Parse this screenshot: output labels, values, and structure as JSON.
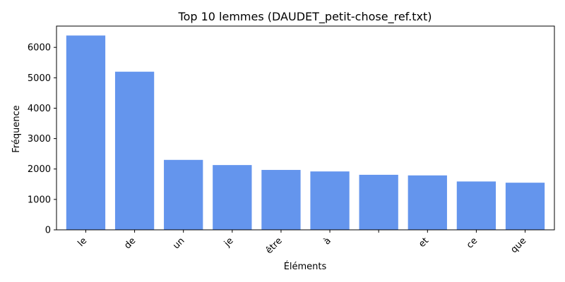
{
  "chart_data": {
    "type": "bar",
    "title": "Top 10 lemmes (DAUDET_petit-chose_ref.txt)",
    "xlabel": "Éléments",
    "ylabel": "Fréquence",
    "categories": [
      "le",
      "de",
      "un",
      "je",
      "être",
      "à",
      "",
      "et",
      "ce",
      "que"
    ],
    "values": [
      6390,
      5200,
      2300,
      2130,
      1970,
      1920,
      1810,
      1790,
      1590,
      1550
    ],
    "ylim": [
      0,
      6700
    ],
    "yticks": [
      0,
      1000,
      2000,
      3000,
      4000,
      5000,
      6000
    ],
    "bar_color": "#6495ED",
    "grid": false,
    "legend": "none"
  }
}
